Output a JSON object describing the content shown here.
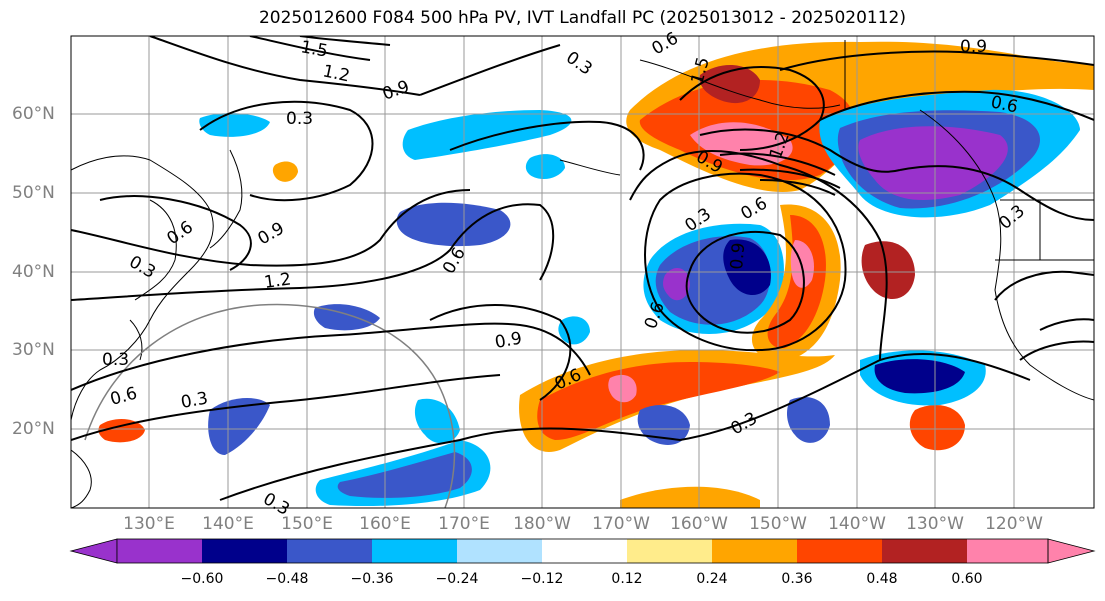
{
  "title": "2025012600 F084 500 hPa PV, IVT Landfall PC (2025013012 - 2025020112)",
  "latitude_labels": [
    "60°N",
    "50°N",
    "40°N",
    "30°N",
    "20°N"
  ],
  "longitude_labels": [
    "130°E",
    "140°E",
    "150°E",
    "160°E",
    "170°E",
    "180°W",
    "170°W",
    "160°W",
    "150°W",
    "140°W",
    "130°W",
    "120°W"
  ],
  "contour_labels": [
    "1.5",
    "1.2",
    "0.9",
    "0.3",
    "0.6",
    "0.9",
    "1.2",
    "0.3",
    "0.6",
    "0.3",
    "0.6",
    "0.9",
    "0.3",
    "0.6",
    "0.3",
    "0.6",
    "0.3",
    "1.5",
    "0.6",
    "0.9",
    "0.6",
    "0.3",
    "0.6",
    "0.9",
    "0.3",
    "1.2",
    "0.3",
    "0.9"
  ],
  "colorbar": {
    "tick_labels": [
      "−0.60",
      "−0.48",
      "−0.36",
      "−0.24",
      "−0.12",
      "0.12",
      "0.24",
      "0.36",
      "0.48",
      "0.60"
    ],
    "colors": [
      "#9932CC",
      "#00008B",
      "#3A57C9",
      "#00BFFF",
      "#B0E2FF",
      "#FFFFFF",
      "#FFEC8B",
      "#FFA500",
      "#FF4500",
      "#B22222",
      "#FF82AB"
    ]
  }
}
